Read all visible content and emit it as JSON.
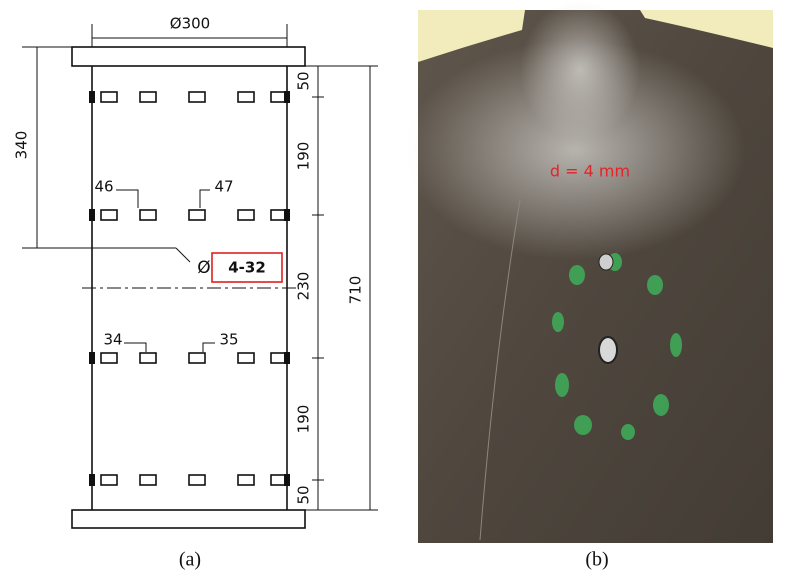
{
  "figure_a": {
    "diameter": "Ø300",
    "left_height": "340",
    "total_height": "710",
    "segments": [
      "50",
      "190",
      "230",
      "190",
      "50"
    ],
    "labels": {
      "upper_left": "46",
      "upper_right": "47",
      "lower_left": "34",
      "lower_right": "35"
    },
    "hole_symbol": "Ø",
    "hole_spec": "4-32",
    "caption": "(a)"
  },
  "figure_b": {
    "annotation": "d = 4 mm",
    "caption": "(b)"
  }
}
